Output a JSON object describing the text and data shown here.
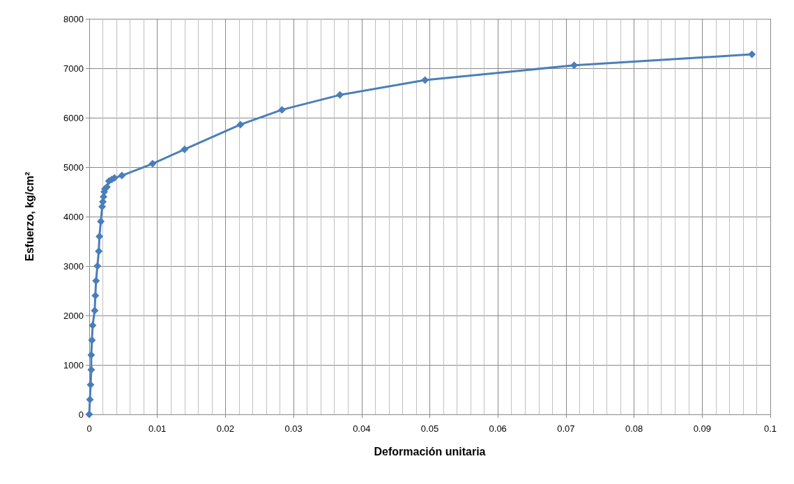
{
  "chart_data": {
    "type": "line",
    "xlabel": "Deformación unitaria",
    "ylabel": "Esfuerzo, kg/cm²",
    "x": [
      0,
      0.0001,
      0.0002,
      0.0003,
      0.0003,
      0.0004,
      0.0005,
      0.0008,
      0.0009,
      0.001,
      0.0012,
      0.0014,
      0.0015,
      0.0017,
      0.0019,
      0.002,
      0.0021,
      0.0022,
      0.0023,
      0.0026,
      0.0029,
      0.0033,
      0.0037,
      0.0048,
      0.0093,
      0.014,
      0.0222,
      0.0283,
      0.0368,
      0.0493,
      0.0712,
      0.0973
    ],
    "series": [
      {
        "color": "#4a7ebb",
        "values": [
          0,
          300,
          600,
          900,
          1200,
          1500,
          1800,
          2100,
          2400,
          2700,
          3000,
          3300,
          3600,
          3900,
          4200,
          4300,
          4400,
          4500,
          4560,
          4600,
          4720,
          4750,
          4780,
          4830,
          5070,
          5360,
          5860,
          6160,
          6460,
          6760,
          7060,
          7280
        ]
      }
    ],
    "xlim": [
      0,
      0.1
    ],
    "xticks": [
      0,
      0.01,
      0.02,
      0.03,
      0.04,
      0.05,
      0.06,
      0.07,
      0.08,
      0.09,
      0.1
    ],
    "ylim": [
      0,
      8000
    ],
    "yticks": [
      0,
      1000,
      2000,
      3000,
      4000,
      5000,
      6000,
      7000,
      8000
    ],
    "grid": true,
    "marker": "diamond",
    "line_style": "solid"
  }
}
